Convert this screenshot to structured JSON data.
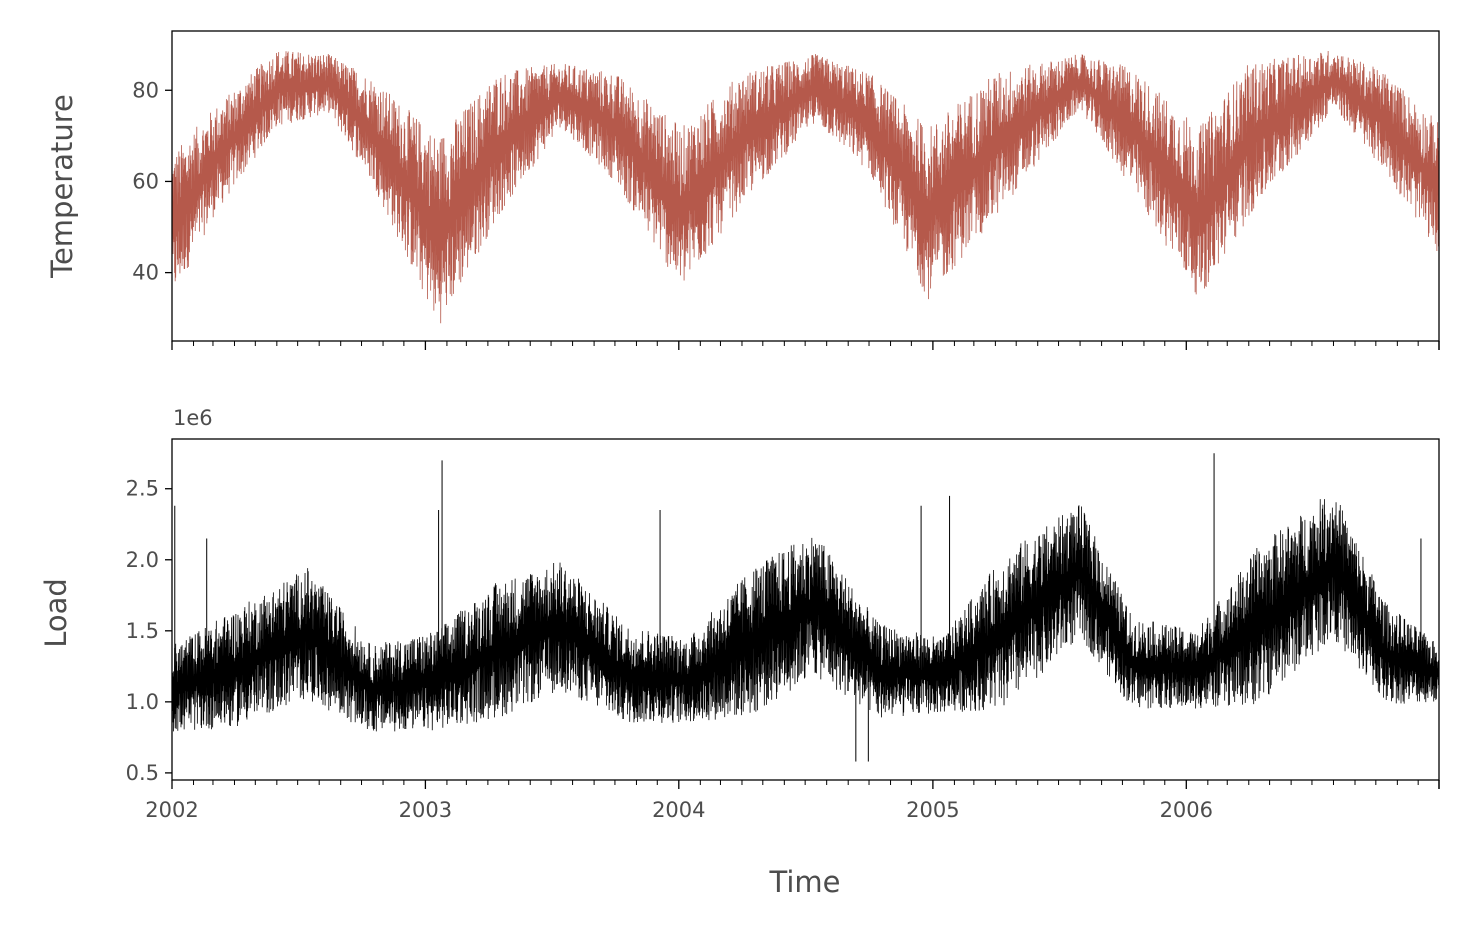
{
  "chart_data": [
    {
      "type": "line",
      "ylabel": "Temperature",
      "xlabel": "",
      "xlim": [
        "2002-01-01",
        "2006-12-31"
      ],
      "ylim": [
        25,
        93
      ],
      "yticks": [
        40,
        60,
        80
      ],
      "ytick_labels": [
        "40",
        "60",
        "80"
      ],
      "grid": false,
      "series": [
        {
          "color": "#b5594b",
          "seasonal_profile": {
            "description_of_values": "approximate daily range of hourly temperature readings",
            "x": [
              "2002-01-01",
              "2002-03-01",
              "2002-06-01",
              "2002-08-15",
              "2002-10-15",
              "2003-01-20",
              "2003-04-15",
              "2003-07-15",
              "2003-10-01",
              "2004-01-05",
              "2004-04-01",
              "2004-07-15",
              "2004-10-01",
              "2004-12-25",
              "2005-04-01",
              "2005-08-01",
              "2005-10-15",
              "2006-01-20",
              "2006-04-01",
              "2006-08-01",
              "2006-10-15",
              "2006-12-31"
            ],
            "low": [
              34,
              52,
              72,
              75,
              60,
              28,
              52,
              72,
              60,
              36,
              55,
              73,
              62,
              34,
              52,
              76,
              58,
              34,
              52,
              76,
              62,
              44
            ],
            "high": [
              66,
              76,
              89,
              88,
              83,
              70,
              84,
              86,
              84,
              72,
              84,
              88,
              84,
              72,
              84,
              88,
              85,
              72,
              86,
              89,
              84,
              73
            ]
          }
        }
      ]
    },
    {
      "type": "line",
      "ylabel": "Load",
      "xlabel": "Time",
      "offset_label": "1e6",
      "xlim": [
        "2002-01-01",
        "2006-12-31"
      ],
      "ylim": [
        0.45,
        2.85
      ],
      "yticks": [
        0.5,
        1.0,
        1.5,
        2.0,
        2.5
      ],
      "ytick_labels": [
        "0.5",
        "1.0",
        "1.5",
        "2.0",
        "2.5"
      ],
      "xticks": [
        "2002-01-01",
        "2003-01-01",
        "2004-01-01",
        "2005-01-01",
        "2006-01-01",
        "2006-12-31"
      ],
      "xtick_labels": [
        "2002",
        "2003",
        "2004",
        "2005",
        "2006",
        ""
      ],
      "grid": false,
      "series": [
        {
          "color": "#000000",
          "seasonal_profile": {
            "description_of_values": "approximate daily range of hourly load in millions",
            "x": [
              "2002-01-01",
              "2002-04-01",
              "2002-07-15",
              "2002-10-15",
              "2003-01-15",
              "2003-04-15",
              "2003-07-15",
              "2003-10-15",
              "2004-01-15",
              "2004-04-15",
              "2004-07-15",
              "2004-10-15",
              "2005-01-15",
              "2005-04-15",
              "2005-08-01",
              "2005-10-15",
              "2006-01-15",
              "2006-04-15",
              "2006-08-01",
              "2006-10-15",
              "2006-12-31"
            ],
            "low": [
              0.78,
              0.82,
              1.02,
              0.78,
              0.8,
              0.88,
              1.08,
              0.85,
              0.85,
              0.9,
              1.18,
              0.88,
              0.92,
              0.95,
              1.45,
              0.95,
              0.95,
              0.98,
              1.45,
              0.98,
              1.0
            ],
            "high": [
              1.4,
              1.65,
              1.95,
              1.4,
              1.5,
              1.85,
              2.0,
              1.55,
              1.45,
              1.95,
              2.2,
              1.55,
              1.45,
              2.05,
              2.4,
              1.6,
              1.5,
              2.1,
              2.5,
              1.7,
              1.4
            ]
          },
          "spikes": [
            {
              "x": "2002-01-05",
              "value": 2.38
            },
            {
              "x": "2002-02-20",
              "value": 2.15
            },
            {
              "x": "2003-01-25",
              "value": 2.7
            },
            {
              "x": "2003-01-20",
              "value": 2.35
            },
            {
              "x": "2003-12-05",
              "value": 2.35
            },
            {
              "x": "2004-09-12",
              "value": 0.58
            },
            {
              "x": "2004-09-30",
              "value": 0.58
            },
            {
              "x": "2004-12-15",
              "value": 2.38
            },
            {
              "x": "2005-01-25",
              "value": 2.45
            },
            {
              "x": "2006-02-10",
              "value": 2.75
            },
            {
              "x": "2006-12-05",
              "value": 2.15
            }
          ]
        }
      ]
    }
  ]
}
